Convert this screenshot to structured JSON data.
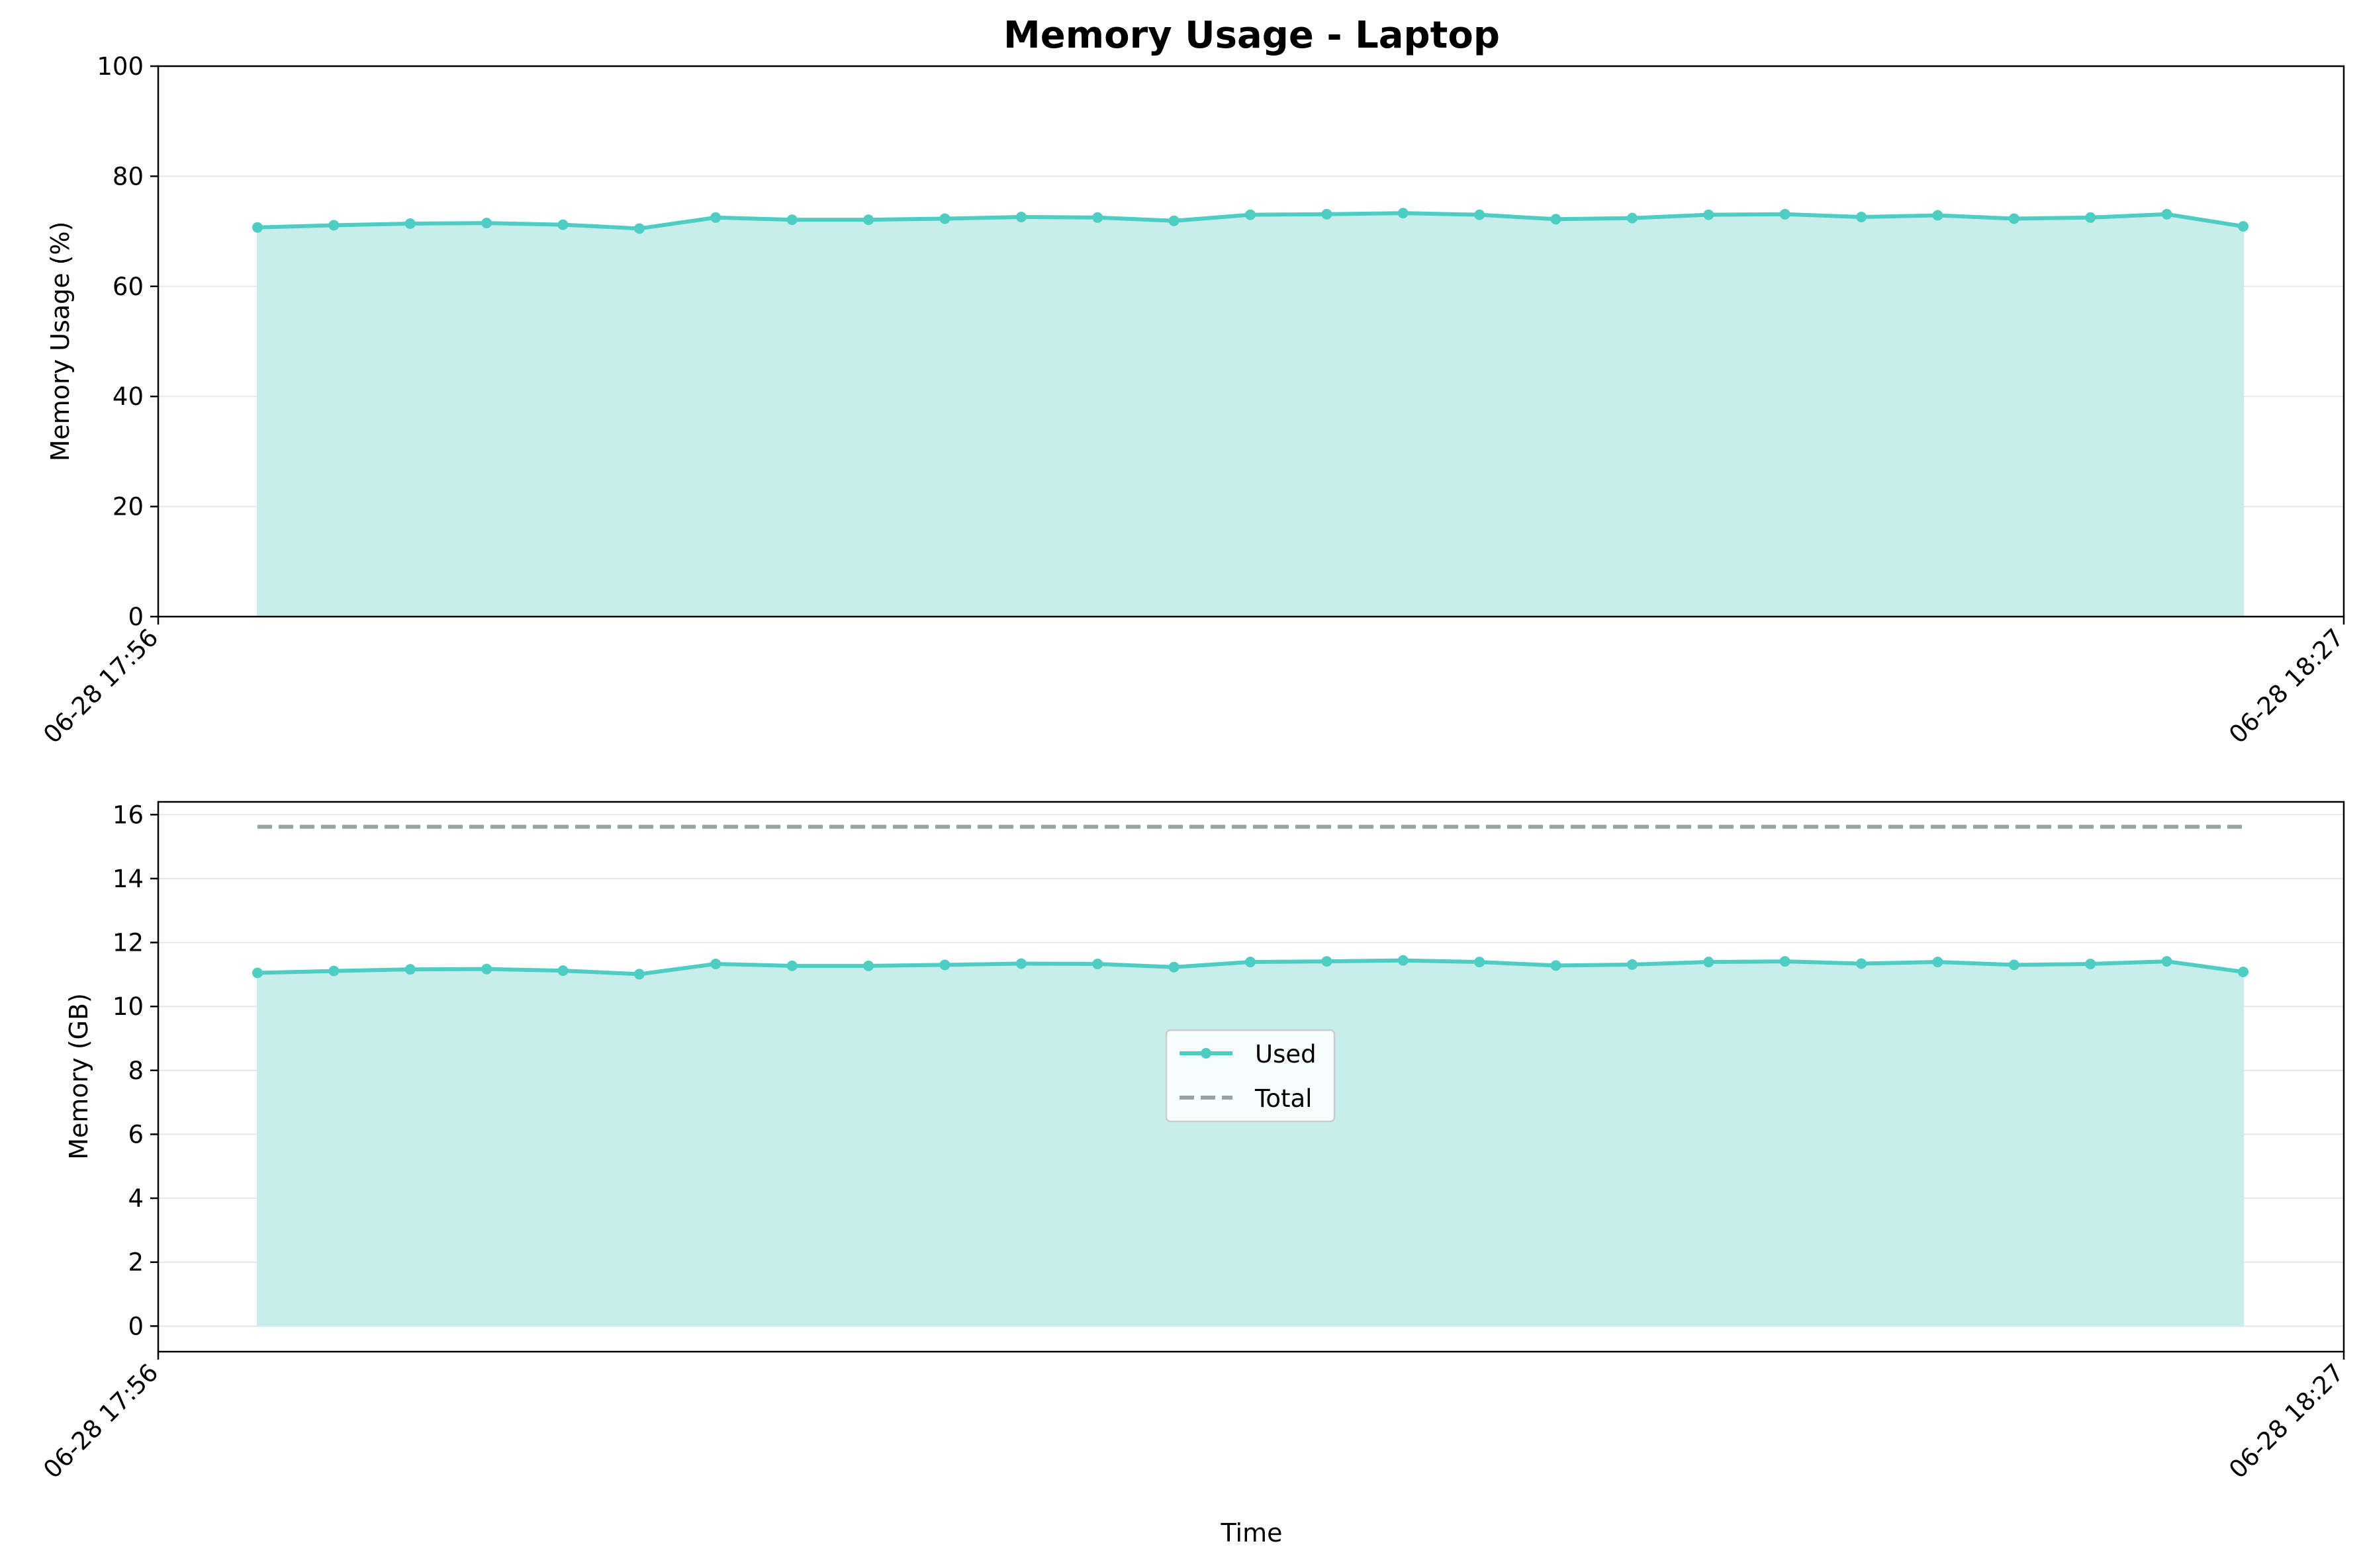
{
  "chart_data": [
    {
      "type": "area",
      "title": "Memory Usage - Laptop",
      "xlabel": "",
      "ylabel": "Memory Usage (%)",
      "x_tick_labels": [
        "06-28 17:56",
        "06-28 18:27"
      ],
      "xlim": [
        "06-28 17:56",
        "06-28 18:27"
      ],
      "ylim": [
        0,
        100
      ],
      "y_ticks": [
        0,
        20,
        40,
        60,
        80,
        100
      ],
      "grid": true,
      "series": [
        {
          "values": [
            70.7,
            71.1,
            71.4,
            71.5,
            71.2,
            70.5,
            72.5,
            72.1,
            72.1,
            72.3,
            72.6,
            72.5,
            71.9,
            73.0,
            73.1,
            73.3,
            73.0,
            72.2,
            72.4,
            73.0,
            73.1,
            72.6,
            72.9,
            72.3,
            72.5,
            73.1,
            70.9
          ]
        }
      ]
    },
    {
      "type": "area",
      "title": "",
      "xlabel": "Time",
      "ylabel": "Memory (GB)",
      "x_tick_labels": [
        "06-28 17:56",
        "06-28 18:27"
      ],
      "xlim": [
        "06-28 17:56",
        "06-28 18:27"
      ],
      "ylim": [
        -0.8,
        16.4
      ],
      "y_ticks": [
        0,
        2,
        4,
        6,
        8,
        10,
        12,
        14,
        16
      ],
      "grid": true,
      "legend_position": "center",
      "series": [
        {
          "name": "Used",
          "values": [
            11.05,
            11.11,
            11.16,
            11.17,
            11.12,
            11.01,
            11.33,
            11.27,
            11.27,
            11.3,
            11.34,
            11.33,
            11.23,
            11.39,
            11.41,
            11.44,
            11.39,
            11.28,
            11.31,
            11.39,
            11.41,
            11.34,
            11.39,
            11.3,
            11.33,
            11.41,
            11.08
          ]
        },
        {
          "name": "Total",
          "values": [
            15.62,
            15.62,
            15.62,
            15.62,
            15.62,
            15.62,
            15.62,
            15.62,
            15.62,
            15.62,
            15.62,
            15.62,
            15.62,
            15.62,
            15.62,
            15.62,
            15.62,
            15.62,
            15.62,
            15.62,
            15.62,
            15.62,
            15.62,
            15.62,
            15.62,
            15.62,
            15.62
          ]
        }
      ]
    }
  ],
  "colors": {
    "used_line": "#4ecdc4",
    "used_fill": "#c8eeeb",
    "total_line": "#95a5a6",
    "grid": "#e6e6e6"
  }
}
